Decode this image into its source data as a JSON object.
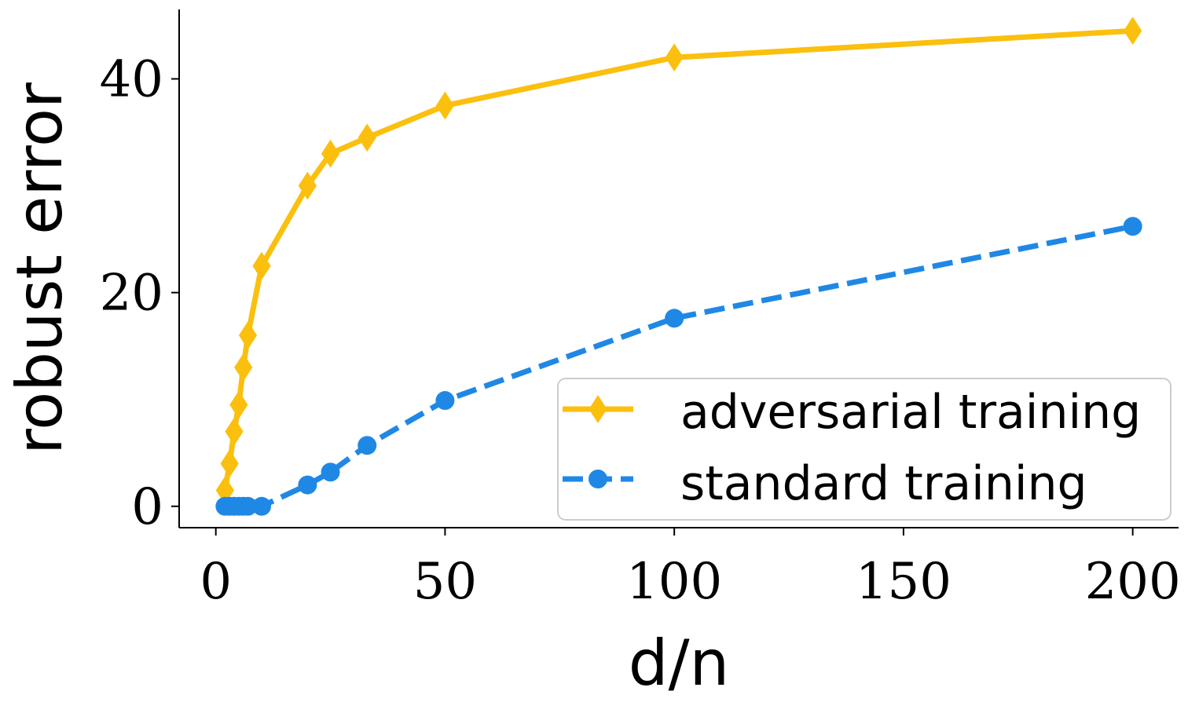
{
  "chart_data": {
    "type": "line",
    "title": "",
    "xlabel": "d/n",
    "ylabel": "robust error",
    "xlim": [
      -8,
      210
    ],
    "ylim": [
      -2,
      46.5
    ],
    "xticks": [
      0,
      50,
      100,
      150,
      200
    ],
    "yticks": [
      0,
      20,
      40
    ],
    "grid": false,
    "legend_position": "bottom-right",
    "series": [
      {
        "name": "adversarial training",
        "color": "#FBBF0E",
        "style": "solid",
        "marker": "diamond",
        "x": [
          2,
          3,
          4,
          5,
          6,
          7,
          10,
          20,
          25,
          33,
          50,
          100,
          200
        ],
        "y": [
          1.5,
          4,
          7,
          9.5,
          13,
          16,
          22.5,
          30,
          33,
          34.5,
          37.5,
          42,
          44.5
        ]
      },
      {
        "name": "standard training",
        "color": "#1F88E5",
        "style": "dashed",
        "marker": "circle",
        "x": [
          2,
          3,
          4,
          5,
          6,
          7,
          10,
          20,
          25,
          33,
          50,
          100,
          200
        ],
        "y": [
          0,
          0,
          0,
          0,
          0,
          0,
          0,
          2,
          3.2,
          5.7,
          9.9,
          17.6,
          26.2
        ]
      }
    ]
  }
}
